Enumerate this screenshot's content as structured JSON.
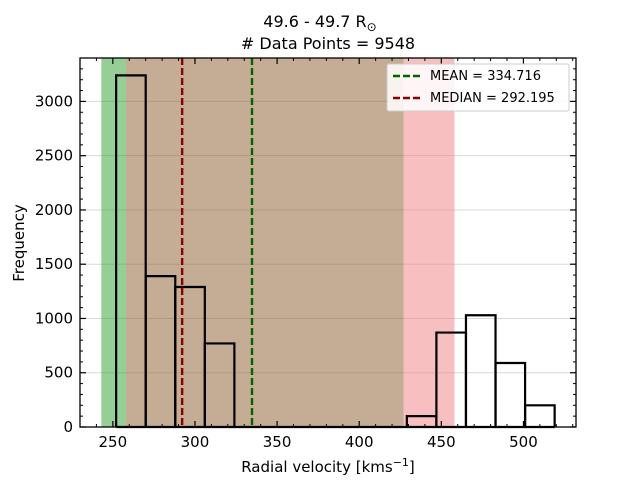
{
  "chart_data": {
    "type": "histogram",
    "title_line1": "49.6 - 49.7 R",
    "title_sun_symbol": "⊙",
    "title_line2": "# Data Points = 9548",
    "xlabel": "Radial velocity [kms",
    "xlabel_sup": "−1",
    "xlabel_end": "]",
    "ylabel": "Frequency",
    "xlim": [
      230,
      532
    ],
    "ylim": [
      0,
      3400
    ],
    "xticks": [
      250,
      300,
      350,
      400,
      450,
      500
    ],
    "yticks": [
      0,
      500,
      1000,
      1500,
      2000,
      2500,
      3000
    ],
    "grid": "horizontal",
    "bins": [
      {
        "x0": 252,
        "x1": 270,
        "count": 3240
      },
      {
        "x0": 270,
        "x1": 288,
        "count": 1390
      },
      {
        "x0": 288,
        "x1": 306,
        "count": 1290
      },
      {
        "x0": 306,
        "x1": 324,
        "count": 770
      },
      {
        "x0": 324,
        "x1": 342,
        "count": 0
      },
      {
        "x0": 342,
        "x1": 360,
        "count": 0
      },
      {
        "x0": 360,
        "x1": 378,
        "count": 0
      },
      {
        "x0": 378,
        "x1": 396,
        "count": 0
      },
      {
        "x0": 396,
        "x1": 414,
        "count": 0
      },
      {
        "x0": 414,
        "x1": 429,
        "count": 0
      },
      {
        "x0": 429,
        "x1": 447,
        "count": 100
      },
      {
        "x0": 447,
        "x1": 465,
        "count": 870
      },
      {
        "x0": 465,
        "x1": 483,
        "count": 1030
      },
      {
        "x0": 483,
        "x1": 501,
        "count": 590
      },
      {
        "x0": 501,
        "x1": 519,
        "count": 200
      }
    ],
    "bands": [
      {
        "name": "green",
        "x0": 243,
        "x1": 258,
        "color": "#2ca02c",
        "opacity": 0.5
      },
      {
        "name": "brown",
        "x0": 258,
        "x1": 427,
        "color": "#8c5a2b",
        "opacity": 0.5
      },
      {
        "name": "red",
        "x0": 427,
        "x1": 458,
        "color": "#f08080",
        "opacity": 0.5
      }
    ],
    "lines": [
      {
        "label": "MEAN = 334.716",
        "value": 334.716,
        "color": "#006400",
        "style": "dashed"
      },
      {
        "label": "MEDIAN = 292.195",
        "value": 292.195,
        "color": "#8b0000",
        "style": "dashed"
      }
    ],
    "legend_position": "top-right"
  }
}
